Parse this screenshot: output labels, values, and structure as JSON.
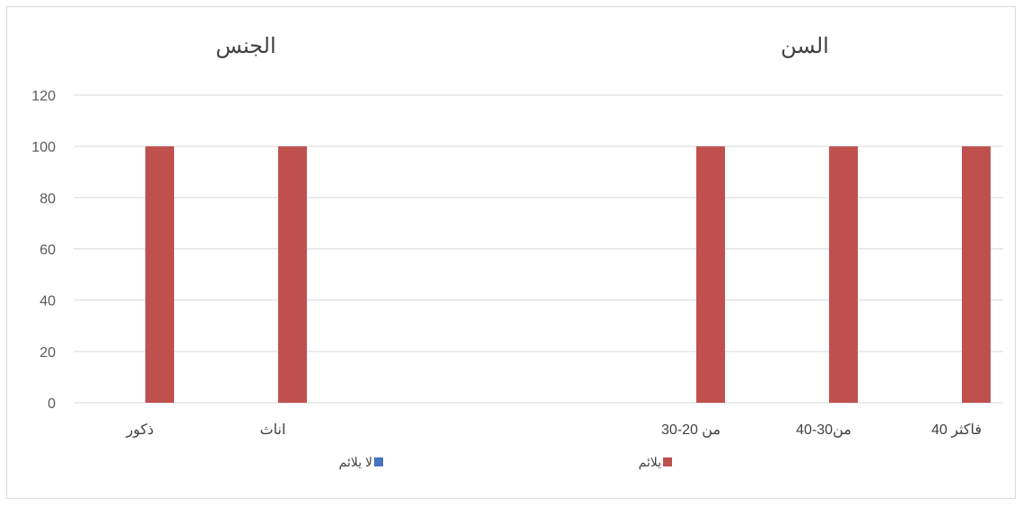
{
  "chart_data": {
    "type": "bar",
    "y_ticks": [
      0,
      20,
      40,
      60,
      80,
      100,
      120
    ],
    "ylim": [
      0,
      120
    ],
    "grid": true,
    "legend_position": "bottom",
    "groups": [
      {
        "title": "الجنس",
        "categories": [
          "ذكور",
          "اناث"
        ]
      },
      {
        "title": "السن",
        "categories": [
          "من 20-30",
          "من30-40",
          "40 فاكثر"
        ]
      }
    ],
    "series": [
      {
        "name": "لا يلائم",
        "color": "#4472c4",
        "values": [
          0,
          0,
          0,
          0,
          0
        ]
      },
      {
        "name": "يلائم",
        "color": "#c0504d",
        "values": [
          100,
          100,
          100,
          100,
          100
        ]
      }
    ]
  }
}
